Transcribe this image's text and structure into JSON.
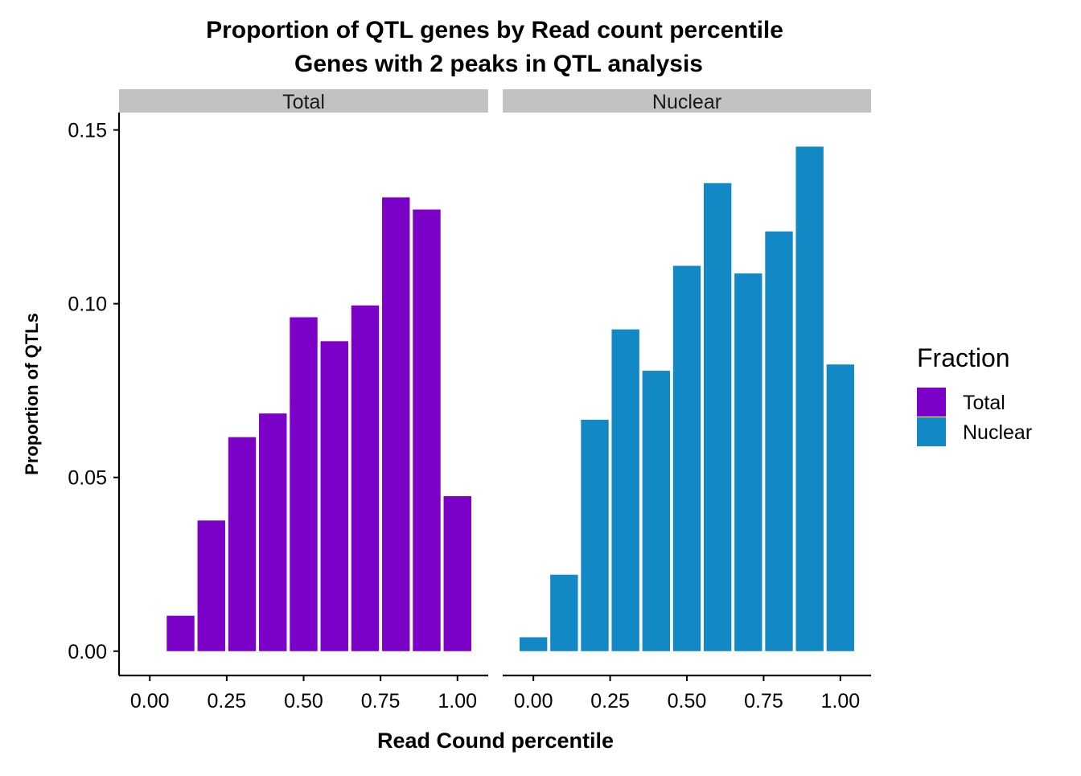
{
  "chart_data": {
    "type": "bar",
    "title": "Proportion of QTL genes by Read count percentile",
    "subtitle": "Genes with 2 peaks in QTL analysis",
    "xlabel": "Read Cound percentile",
    "ylabel": "Proportion of QTLs",
    "xlim": [
      -0.1,
      1.1
    ],
    "ylim": [
      -0.007,
      0.155
    ],
    "x_ticks": [
      "0.00",
      "0.25",
      "0.50",
      "0.75",
      "1.00"
    ],
    "y_ticks": [
      "0.00",
      "0.05",
      "0.10",
      "0.15"
    ],
    "grid": false,
    "legend": {
      "title": "Fraction",
      "position": "right",
      "entries": [
        {
          "label": "Total",
          "color": "#7b00c8"
        },
        {
          "label": "Nuclear",
          "color": "#1288c4"
        }
      ]
    },
    "facets": [
      {
        "label": "Total",
        "color": "#7b00c8",
        "x": [
          0.1,
          0.2,
          0.3,
          0.4,
          0.5,
          0.6,
          0.7,
          0.8,
          0.9,
          1.0
        ],
        "values": [
          0.0102,
          0.0376,
          0.0616,
          0.0684,
          0.0961,
          0.0892,
          0.0995,
          0.1306,
          0.1271,
          0.0446
        ]
      },
      {
        "label": "Nuclear",
        "color": "#1288c4",
        "x": [
          0.0,
          0.1,
          0.2,
          0.3,
          0.4,
          0.5,
          0.6,
          0.7,
          0.8,
          0.9,
          1.0
        ],
        "values": [
          0.004,
          0.022,
          0.0666,
          0.0926,
          0.0807,
          0.1109,
          0.1347,
          0.1087,
          0.1208,
          0.1452,
          0.0825
        ]
      }
    ]
  }
}
